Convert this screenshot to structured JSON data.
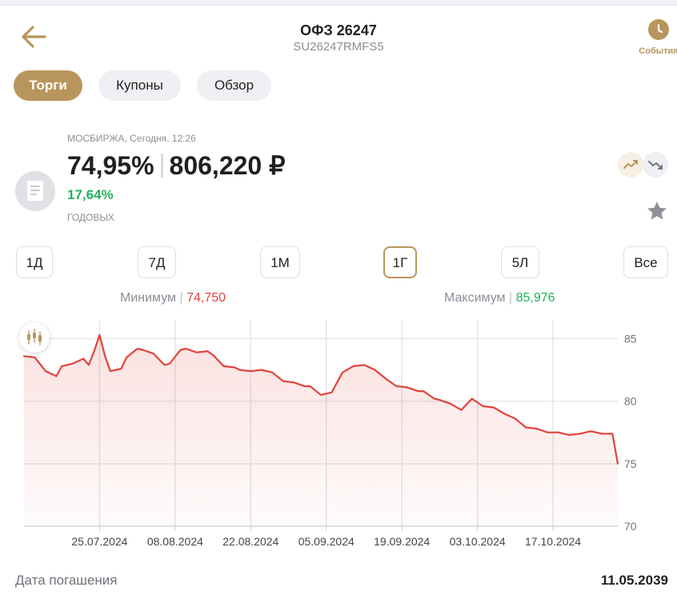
{
  "header": {
    "title": "ОФЗ 26247",
    "subtitle": "SU26247RMFS5",
    "events_label": "События",
    "back_icon": "arrow-left-icon",
    "events_icon": "clock-icon"
  },
  "tabs": [
    {
      "label": "Торги",
      "active": true
    },
    {
      "label": "Купоны",
      "active": false
    },
    {
      "label": "Обзор",
      "active": false
    }
  ],
  "quote": {
    "exchange": "МОСБИРЖА, Сегодня, 12:26",
    "price_pct": "74,95%",
    "price_rub": "806,220 ₽",
    "yield": "17,64%",
    "yield_label": "ГОДОВЫХ"
  },
  "periods": [
    {
      "label": "1Д",
      "active": false
    },
    {
      "label": "7Д",
      "active": false
    },
    {
      "label": "1М",
      "active": false
    },
    {
      "label": "1Г",
      "active": true
    },
    {
      "label": "5Л",
      "active": false
    },
    {
      "label": "Все",
      "active": false
    }
  ],
  "stats": {
    "min_label": "Минимум",
    "min_value": "74,750",
    "max_label": "Максимум",
    "max_value": "85,976"
  },
  "colors": {
    "accent": "#b8955c",
    "line": "#e0443c",
    "positive": "#20b35a",
    "negative": "#e0443c"
  },
  "chart_data": {
    "type": "area",
    "title": "",
    "xlabel": "",
    "ylabel": "",
    "ylim": [
      70,
      86.5
    ],
    "yticks": [
      70,
      75,
      80,
      85
    ],
    "grid": true,
    "x_tick_labels": [
      "25.07.2024",
      "08.08.2024",
      "22.08.2024",
      "05.09.2024",
      "19.09.2024",
      "03.10.2024",
      "17.10.2024"
    ],
    "x_tick_dates": [
      "2024-07-25",
      "2024-08-08",
      "2024-08-22",
      "2024-09-05",
      "2024-09-19",
      "2024-10-03",
      "2024-10-17"
    ],
    "x_range": [
      "2024-07-11",
      "2024-10-29"
    ],
    "x": [
      "2024-07-11",
      "2024-07-13",
      "2024-07-15",
      "2024-07-17",
      "2024-07-18",
      "2024-07-20",
      "2024-07-22",
      "2024-07-23",
      "2024-07-24",
      "2024-07-25",
      "2024-07-26",
      "2024-07-27",
      "2024-07-29",
      "2024-07-30",
      "2024-08-01",
      "2024-08-02",
      "2024-08-04",
      "2024-08-06",
      "2024-08-07",
      "2024-08-09",
      "2024-08-10",
      "2024-08-12",
      "2024-08-14",
      "2024-08-15",
      "2024-08-17",
      "2024-08-19",
      "2024-08-20",
      "2024-08-22",
      "2024-08-24",
      "2024-08-26",
      "2024-08-28",
      "2024-08-30",
      "2024-09-01",
      "2024-09-02",
      "2024-09-04",
      "2024-09-06",
      "2024-09-08",
      "2024-09-10",
      "2024-09-12",
      "2024-09-14",
      "2024-09-16",
      "2024-09-18",
      "2024-09-20",
      "2024-09-22",
      "2024-09-23",
      "2024-09-25",
      "2024-09-26",
      "2024-09-28",
      "2024-09-30",
      "2024-10-02",
      "2024-10-04",
      "2024-10-06",
      "2024-10-08",
      "2024-10-10",
      "2024-10-12",
      "2024-10-14",
      "2024-10-16",
      "2024-10-18",
      "2024-10-20",
      "2024-10-22",
      "2024-10-24",
      "2024-10-26",
      "2024-10-28",
      "2024-10-29"
    ],
    "series": [
      {
        "name": "",
        "values": [
          83.6,
          83.5,
          82.4,
          82.0,
          82.8,
          83.0,
          83.4,
          82.9,
          84.0,
          85.3,
          83.6,
          82.4,
          82.6,
          83.5,
          84.2,
          84.1,
          83.8,
          82.9,
          83.0,
          84.1,
          84.2,
          83.9,
          84.0,
          83.7,
          82.8,
          82.7,
          82.5,
          82.4,
          82.5,
          82.3,
          81.6,
          81.5,
          81.2,
          81.2,
          80.5,
          80.7,
          82.3,
          82.8,
          82.9,
          82.5,
          81.8,
          81.2,
          81.1,
          80.8,
          80.8,
          80.2,
          80.1,
          79.8,
          79.3,
          80.2,
          79.6,
          79.5,
          79.0,
          78.6,
          77.9,
          77.8,
          77.5,
          77.5,
          77.3,
          77.4,
          77.6,
          77.4,
          77.4,
          75.0
        ]
      }
    ],
    "series_dates_note": ""
  }
}
